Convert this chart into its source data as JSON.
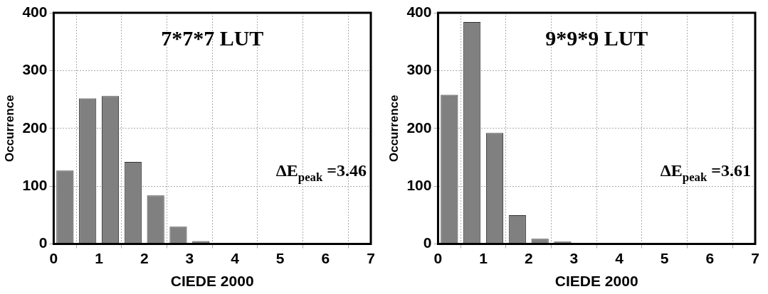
{
  "chart_data": [
    {
      "type": "histogram",
      "title": "7*7*7 LUT",
      "xlabel": "CIEDE 2000",
      "ylabel": "Occurrence",
      "bins": [
        0,
        0.5,
        1,
        1.5,
        2,
        2.5,
        3,
        3.5,
        4,
        4.5,
        5,
        5.5,
        6,
        6.5,
        7
      ],
      "values": [
        127,
        252,
        256,
        142,
        84,
        30,
        5,
        0,
        0,
        0,
        0,
        0,
        0,
        0
      ],
      "color": "#808080",
      "xlim": [
        0,
        7
      ],
      "xticks": [
        0,
        1,
        2,
        3,
        4,
        5,
        6,
        7
      ],
      "ylim": [
        0,
        400
      ],
      "yticks": [
        0,
        100,
        200,
        300,
        400
      ],
      "grid": true,
      "annotations": [
        "ΔE$_{peak}$ =3.46"
      ]
    },
    {
      "type": "histogram",
      "title": "9*9*9 LUT",
      "xlabel": "CIEDE 2000",
      "ylabel": "Occurrence",
      "bins": [
        0,
        0.5,
        1,
        1.5,
        2,
        2.5,
        3,
        3.5,
        4,
        4.5,
        5,
        5.5,
        6,
        6.5,
        7
      ],
      "values": [
        258,
        384,
        192,
        50,
        9,
        4,
        0,
        1,
        0,
        0,
        0,
        0,
        0,
        0
      ],
      "color": "#808080",
      "xlim": [
        0,
        7
      ],
      "xticks": [
        0,
        1,
        2,
        3,
        4,
        5,
        6,
        7
      ],
      "ylim": [
        0,
        400
      ],
      "yticks": [
        0,
        100,
        200,
        300,
        400
      ],
      "grid": true,
      "annotations": [
        "ΔE$_{peak}$ =3.61"
      ]
    }
  ]
}
